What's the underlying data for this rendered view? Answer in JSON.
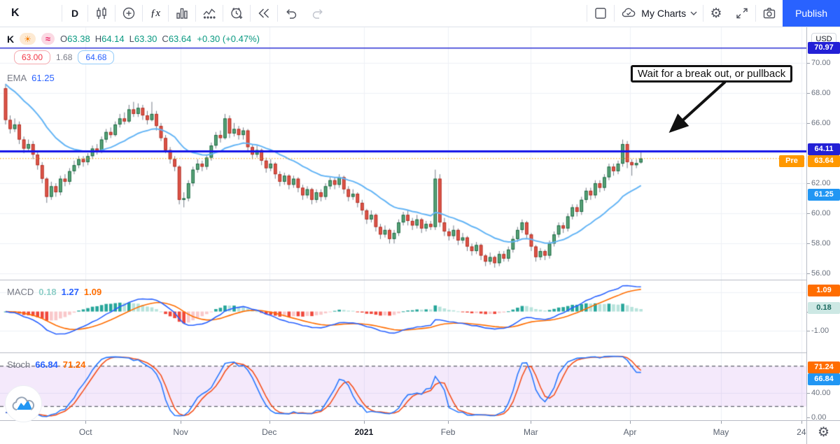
{
  "toolbar": {
    "symbol": "K",
    "interval": "D",
    "fx_label": "ƒx",
    "my_charts": "My Charts",
    "publish": "Publish"
  },
  "legend": {
    "symbol": "K",
    "ohlc": [
      {
        "k": "O",
        "v": "63.38"
      },
      {
        "k": "H",
        "v": "64.14"
      },
      {
        "k": "L",
        "v": "63.30"
      },
      {
        "k": "C",
        "v": "63.64"
      }
    ],
    "change": "+0.30 (+0.47%)",
    "range_low": "63.00",
    "range_width": "1.68",
    "range_high": "64.68",
    "ema_label": "EMA",
    "ema_value": "61.25",
    "sun_icon": "☀",
    "wave_icon": "≈"
  },
  "macd_legend": {
    "label": "MACD",
    "hist": "0.18",
    "macd": "1.27",
    "signal": "1.09"
  },
  "stoch_legend": {
    "label": "Stoch",
    "k": "66.84",
    "d": "71.24"
  },
  "annotation": "Wait for a break out, or pullback",
  "axis": {
    "currency": "USD",
    "pre_label": "Pre",
    "price_labels": [
      70,
      68,
      66,
      62,
      60,
      58,
      56
    ],
    "macd_labels": [
      0,
      -1
    ],
    "stoch_labels": [
      40,
      0
    ],
    "badges": [
      {
        "pane": "price",
        "v": 70.97,
        "bg": "#2320d6",
        "fg": "#ffffff"
      },
      {
        "pane": "price",
        "v": 64.11,
        "bg": "#2320d6",
        "fg": "#ffffff"
      },
      {
        "pane": "price",
        "v": 63.64,
        "bg": "#ff9800",
        "fg": "#ffffff",
        "pre": true
      },
      {
        "pane": "price",
        "v": 61.25,
        "bg": "#2196f3",
        "fg": "#ffffff"
      },
      {
        "pane": "macd",
        "v": 1.09,
        "bg": "#ff6d00",
        "fg": "#ffffff"
      },
      {
        "pane": "macd",
        "v": 0.18,
        "bg": "#cde8e4",
        "fg": "#1d6b60"
      },
      {
        "pane": "stoch",
        "v": 71.24,
        "bg": "#ff6d00",
        "fg": "#ffffff"
      },
      {
        "pane": "stoch",
        "v": 66.84,
        "bg": "#2196f3",
        "fg": "#ffffff"
      }
    ]
  },
  "time_axis": {
    "ticks": [
      {
        "label": "Oct",
        "i": 17.5
      },
      {
        "label": "Nov",
        "i": 38.3
      },
      {
        "label": "Dec",
        "i": 57.7
      },
      {
        "label": "2021",
        "i": 78.4,
        "bold": true
      },
      {
        "label": "Feb",
        "i": 96.8
      },
      {
        "label": "Mar",
        "i": 114.9
      },
      {
        "label": "Apr",
        "i": 136.6
      },
      {
        "label": "May",
        "i": 156.5
      },
      {
        "label": "24",
        "i": 174.1
      }
    ]
  },
  "chart_data": {
    "type": "candlestick",
    "symbol": "K",
    "interval": "D",
    "price_ylim": [
      55.6,
      72.35
    ],
    "macd_ylim": [
      -2.05,
      1.55
    ],
    "stoch_ylim": [
      0,
      100
    ],
    "stoch_bands": [
      80,
      20
    ],
    "levels": {
      "upper_line": 70.97,
      "breakout_line": 64.11,
      "pre_market": 63.64
    },
    "indicators": {
      "ema_period": 21,
      "ema_seed": 68.8,
      "macd_params": [
        12,
        26,
        9
      ],
      "stoch_params": [
        14,
        3,
        3
      ],
      "ema_current": 61.25,
      "macd_current": {
        "macd": 1.27,
        "signal": 1.09,
        "hist": 0.18
      },
      "stoch_current": {
        "k": 66.84,
        "d": 71.24
      }
    },
    "colors": {
      "up_fill": "#5ba57a",
      "up_stroke": "#1e6b45",
      "down_fill": "#e0564a",
      "down_stroke": "#b23227",
      "wick": "#767d89",
      "ema": "#64b5f6",
      "line_upper": "#2b2fd4",
      "line_breakout": "#1414e8",
      "pre_dotted": "#f59b00",
      "macd_line": "#2962ff",
      "macd_signal": "#ff6d00",
      "hist_pos": "#26a69a",
      "hist_pos_weak": "#b7e3dc",
      "hist_neg": "#f0483c",
      "hist_neg_weak": "#f9c8ca",
      "stoch_k": "#2979ff",
      "stoch_d": "#f4511e",
      "band": "rgba(168,86,221,0.13)",
      "grid": "#eef1f6",
      "accent": "#2962ff",
      "ohlc_up": "#089981"
    },
    "candles": [
      [
        68.3,
        68.6,
        65.9,
        66.2
      ],
      [
        66.2,
        66.5,
        65.3,
        65.6
      ],
      [
        65.6,
        66.3,
        65.4,
        65.9
      ],
      [
        65.9,
        66.1,
        64.6,
        64.9
      ],
      [
        64.9,
        65.1,
        64.0,
        64.3
      ],
      [
        64.3,
        64.9,
        64.1,
        64.6
      ],
      [
        64.6,
        64.8,
        63.6,
        63.9
      ],
      [
        63.9,
        64.1,
        62.9,
        63.2
      ],
      [
        63.2,
        63.4,
        62.0,
        62.3
      ],
      [
        62.3,
        62.4,
        60.7,
        61.1
      ],
      [
        61.1,
        62.1,
        60.9,
        61.8
      ],
      [
        61.8,
        62.0,
        61.1,
        61.4
      ],
      [
        61.4,
        62.5,
        61.2,
        62.3
      ],
      [
        62.3,
        62.6,
        61.8,
        62.1
      ],
      [
        62.1,
        63.0,
        61.9,
        62.8
      ],
      [
        62.8,
        63.5,
        62.6,
        63.2
      ],
      [
        63.2,
        63.8,
        63.0,
        63.6
      ],
      [
        63.6,
        63.8,
        63.1,
        63.4
      ],
      [
        63.4,
        64.0,
        63.2,
        63.8
      ],
      [
        63.8,
        64.5,
        63.6,
        64.3
      ],
      [
        64.3,
        64.6,
        63.9,
        64.1
      ],
      [
        64.1,
        65.1,
        64.0,
        64.9
      ],
      [
        64.9,
        65.6,
        64.7,
        65.4
      ],
      [
        65.4,
        65.7,
        65.0,
        65.2
      ],
      [
        65.2,
        66.1,
        65.1,
        65.9
      ],
      [
        65.9,
        66.6,
        65.7,
        66.3
      ],
      [
        66.3,
        66.7,
        65.9,
        66.1
      ],
      [
        66.1,
        67.2,
        66.0,
        66.9
      ],
      [
        66.9,
        67.4,
        66.4,
        66.6
      ],
      [
        66.6,
        67.3,
        66.4,
        67.0
      ],
      [
        67.0,
        67.2,
        66.2,
        66.5
      ],
      [
        66.5,
        66.8,
        65.9,
        66.2
      ],
      [
        66.2,
        67.4,
        66.1,
        66.6
      ],
      [
        66.6,
        66.8,
        65.5,
        65.8
      ],
      [
        65.8,
        66.0,
        64.8,
        65.0
      ],
      [
        65.0,
        65.2,
        64.0,
        64.2
      ],
      [
        64.2,
        64.4,
        63.3,
        63.6
      ],
      [
        63.6,
        63.8,
        62.8,
        63.1
      ],
      [
        63.1,
        63.2,
        60.6,
        60.9
      ],
      [
        60.9,
        61.4,
        60.4,
        61.0
      ],
      [
        61.0,
        62.2,
        60.8,
        62.0
      ],
      [
        62.0,
        63.1,
        61.8,
        62.9
      ],
      [
        62.9,
        63.6,
        62.7,
        63.3
      ],
      [
        63.3,
        63.5,
        62.8,
        63.1
      ],
      [
        63.1,
        63.9,
        62.9,
        63.7
      ],
      [
        63.7,
        64.7,
        63.5,
        64.5
      ],
      [
        64.5,
        65.4,
        64.3,
        65.2
      ],
      [
        65.2,
        65.5,
        64.7,
        65.0
      ],
      [
        65.0,
        66.6,
        64.9,
        66.3
      ],
      [
        66.3,
        66.5,
        65.0,
        65.3
      ],
      [
        65.3,
        66.0,
        65.1,
        65.6
      ],
      [
        65.6,
        65.8,
        64.9,
        65.2
      ],
      [
        65.2,
        65.7,
        64.9,
        65.5
      ],
      [
        65.5,
        65.6,
        64.1,
        64.4
      ],
      [
        64.4,
        64.6,
        63.6,
        63.9
      ],
      [
        63.9,
        64.5,
        63.7,
        64.2
      ],
      [
        64.2,
        64.3,
        63.2,
        63.5
      ],
      [
        63.5,
        63.7,
        62.7,
        63.0
      ],
      [
        63.0,
        63.6,
        62.8,
        63.3
      ],
      [
        63.3,
        63.4,
        62.3,
        62.6
      ],
      [
        62.6,
        62.8,
        61.8,
        62.1
      ],
      [
        62.1,
        62.7,
        61.9,
        62.5
      ],
      [
        62.5,
        62.6,
        61.6,
        61.9
      ],
      [
        61.9,
        62.5,
        61.7,
        62.3
      ],
      [
        62.3,
        62.4,
        61.4,
        61.7
      ],
      [
        61.7,
        61.9,
        60.9,
        61.2
      ],
      [
        61.2,
        61.8,
        61.0,
        61.6
      ],
      [
        61.6,
        61.7,
        60.6,
        60.9
      ],
      [
        60.9,
        61.6,
        60.7,
        61.4
      ],
      [
        61.4,
        61.6,
        60.8,
        61.1
      ],
      [
        61.1,
        62.0,
        60.9,
        61.8
      ],
      [
        61.8,
        62.4,
        61.6,
        62.2
      ],
      [
        62.2,
        62.4,
        61.6,
        61.9
      ],
      [
        61.9,
        62.6,
        61.7,
        62.4
      ],
      [
        62.4,
        62.5,
        61.3,
        61.6
      ],
      [
        61.6,
        61.8,
        60.8,
        61.1
      ],
      [
        61.1,
        61.6,
        60.9,
        61.3
      ],
      [
        61.3,
        61.4,
        60.4,
        60.7
      ],
      [
        60.7,
        60.9,
        59.9,
        60.2
      ],
      [
        60.2,
        60.3,
        59.3,
        59.6
      ],
      [
        59.6,
        60.2,
        59.4,
        59.9
      ],
      [
        59.9,
        60.0,
        58.8,
        59.1
      ],
      [
        59.1,
        59.3,
        58.3,
        58.6
      ],
      [
        58.6,
        59.2,
        58.4,
        58.9
      ],
      [
        58.9,
        59.0,
        58.0,
        58.3
      ],
      [
        58.3,
        58.9,
        58.0,
        58.7
      ],
      [
        58.7,
        59.6,
        58.5,
        59.4
      ],
      [
        59.4,
        60.1,
        59.2,
        59.9
      ],
      [
        59.9,
        60.2,
        59.2,
        59.5
      ],
      [
        59.5,
        59.7,
        58.9,
        59.2
      ],
      [
        59.2,
        59.9,
        59.0,
        59.6
      ],
      [
        59.6,
        59.7,
        58.7,
        59.0
      ],
      [
        59.0,
        59.5,
        58.8,
        59.3
      ],
      [
        59.3,
        59.5,
        58.9,
        59.1
      ],
      [
        59.1,
        62.9,
        58.9,
        62.3
      ],
      [
        62.3,
        62.6,
        59.1,
        59.4
      ],
      [
        59.4,
        59.7,
        58.5,
        58.8
      ],
      [
        58.8,
        59.0,
        58.2,
        58.5
      ],
      [
        58.5,
        59.2,
        58.3,
        58.9
      ],
      [
        58.9,
        59.0,
        57.9,
        58.2
      ],
      [
        58.2,
        58.7,
        58.0,
        58.4
      ],
      [
        58.4,
        58.5,
        57.5,
        57.8
      ],
      [
        57.8,
        58.0,
        57.2,
        57.5
      ],
      [
        57.5,
        58.1,
        57.3,
        57.9
      ],
      [
        57.9,
        58.0,
        56.9,
        57.2
      ],
      [
        57.2,
        57.3,
        56.5,
        56.8
      ],
      [
        56.8,
        57.4,
        56.6,
        57.1
      ],
      [
        57.1,
        57.2,
        56.4,
        56.7
      ],
      [
        56.7,
        57.5,
        56.5,
        57.3
      ],
      [
        57.3,
        57.5,
        56.8,
        57.0
      ],
      [
        57.0,
        57.8,
        56.8,
        57.6
      ],
      [
        57.6,
        58.5,
        57.4,
        58.3
      ],
      [
        58.3,
        59.1,
        58.1,
        58.9
      ],
      [
        58.9,
        59.6,
        58.7,
        59.4
      ],
      [
        59.4,
        59.5,
        58.3,
        58.6
      ],
      [
        58.6,
        58.7,
        57.5,
        57.8
      ],
      [
        57.8,
        57.9,
        56.8,
        57.1
      ],
      [
        57.1,
        57.7,
        56.9,
        57.5
      ],
      [
        57.5,
        57.6,
        56.9,
        57.2
      ],
      [
        57.2,
        58.2,
        57.0,
        58.0
      ],
      [
        58.0,
        58.8,
        57.8,
        58.6
      ],
      [
        58.6,
        59.4,
        58.4,
        59.2
      ],
      [
        59.2,
        59.4,
        58.7,
        59.0
      ],
      [
        59.0,
        60.0,
        58.8,
        59.8
      ],
      [
        59.8,
        60.6,
        59.6,
        60.4
      ],
      [
        60.4,
        60.6,
        59.8,
        60.1
      ],
      [
        60.1,
        61.1,
        59.9,
        60.9
      ],
      [
        60.9,
        61.7,
        60.7,
        61.5
      ],
      [
        61.5,
        61.7,
        60.9,
        61.2
      ],
      [
        61.2,
        62.2,
        61.0,
        62.0
      ],
      [
        62.0,
        62.2,
        61.4,
        61.7
      ],
      [
        61.7,
        62.6,
        61.5,
        62.4
      ],
      [
        62.4,
        63.3,
        62.2,
        63.1
      ],
      [
        63.1,
        63.3,
        62.5,
        62.8
      ],
      [
        62.8,
        63.5,
        62.6,
        63.3
      ],
      [
        63.3,
        64.9,
        63.1,
        64.6
      ],
      [
        64.6,
        64.8,
        63.0,
        63.4
      ],
      [
        63.4,
        63.6,
        62.5,
        63.2
      ],
      [
        63.2,
        63.6,
        63.0,
        63.34
      ],
      [
        63.38,
        64.14,
        63.3,
        63.64
      ]
    ]
  }
}
